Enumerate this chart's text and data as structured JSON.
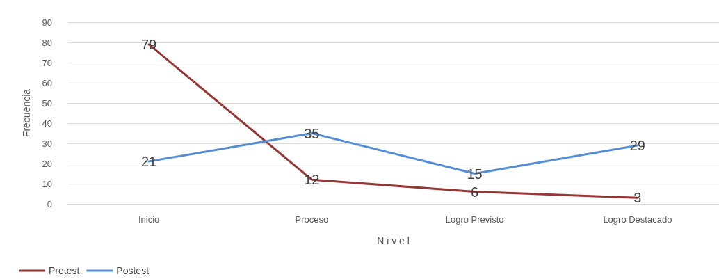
{
  "chart_data": {
    "type": "line",
    "xlabel": "N i v e l",
    "ylabel": "Frecuencia",
    "categories": [
      "Inicio",
      "Proceso",
      "Logro Previsto",
      "Logro Destacado"
    ],
    "series": [
      {
        "name": "Pretest",
        "color": "#953735",
        "values": [
          79,
          12,
          6,
          3
        ]
      },
      {
        "name": "Postest",
        "color": "#558ed5",
        "values": [
          21,
          35,
          15,
          29
        ]
      }
    ],
    "ylim": [
      0,
      90
    ],
    "yticks": [
      0,
      10,
      20,
      30,
      40,
      50,
      60,
      70,
      80,
      90
    ],
    "grid": "y",
    "legend": "bottom left",
    "marker": "none",
    "line_style": "solid",
    "data_labels": true
  }
}
